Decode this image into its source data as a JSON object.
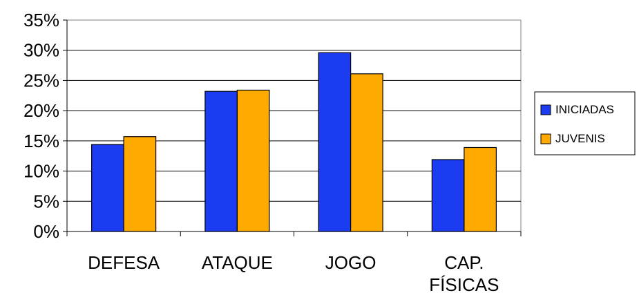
{
  "chart_data": {
    "type": "bar",
    "categories": [
      [
        "DEFESA"
      ],
      [
        "ATAQUE"
      ],
      [
        "JOGO"
      ],
      [
        "CAP.",
        "FÍSICAS"
      ]
    ],
    "series": [
      {
        "name": "INICIADAS",
        "values": [
          14.4,
          23.2,
          29.6,
          11.9
        ],
        "color": "#1c3cf2"
      },
      {
        "name": "JUVENIS",
        "values": [
          15.7,
          23.4,
          26.1,
          13.9
        ],
        "color": "#ffaa00"
      }
    ],
    "y_ticks": [
      "0%",
      "5%",
      "10%",
      "15%",
      "20%",
      "25%",
      "30%",
      "35%"
    ],
    "ylim": [
      0,
      35
    ],
    "y_step": 5,
    "grid": true,
    "legend_position": "right",
    "title": "",
    "xlabel": "",
    "ylabel": ""
  }
}
